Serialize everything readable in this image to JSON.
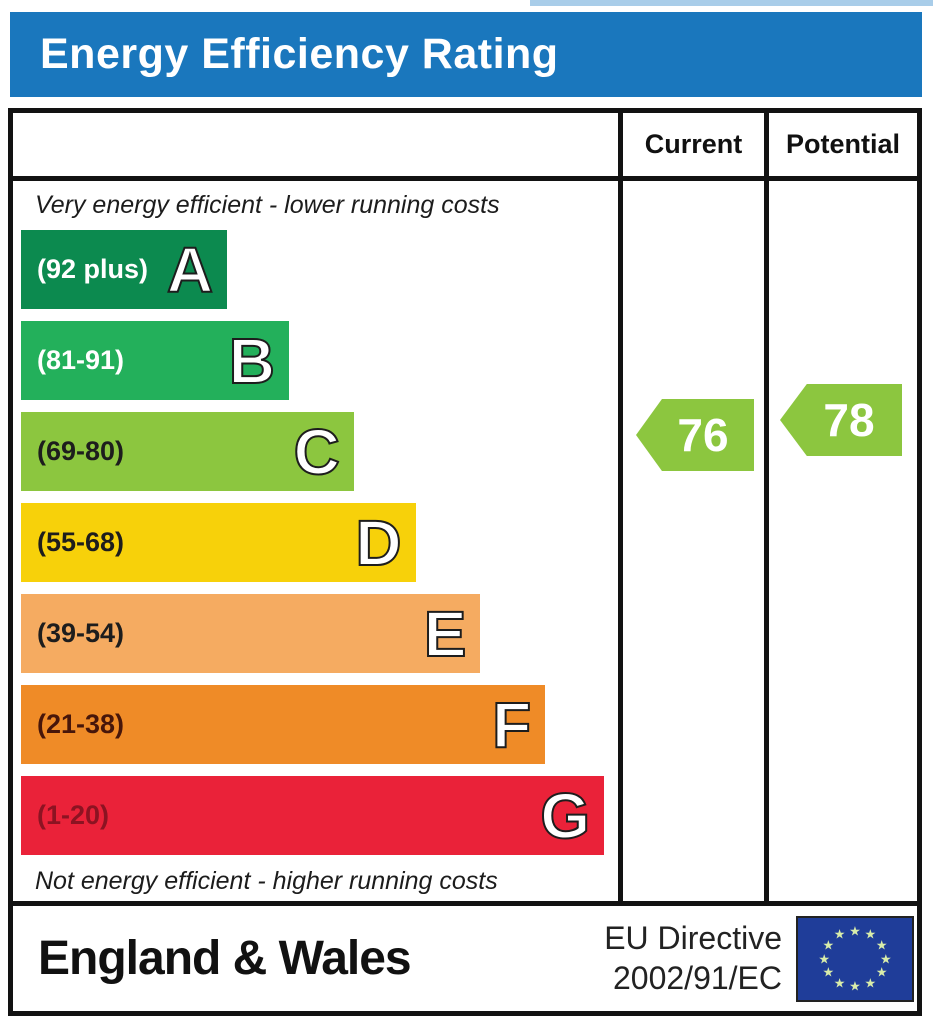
{
  "title": "Energy Efficiency Rating",
  "colors": {
    "title_bar": "#1a77bd",
    "table_border": "#121212",
    "rating_arrow_green": "#8cc63f"
  },
  "header": {
    "current_label": "Current",
    "potential_label": "Potential"
  },
  "scale": {
    "top_caption": "Very energy efficient - lower running costs",
    "bottom_caption": "Not energy efficient - higher running costs",
    "bands": [
      {
        "letter": "A",
        "range": "(92 plus)",
        "color": "#0c8a4f",
        "width_pct": 35,
        "label_color": "#ffffff"
      },
      {
        "letter": "B",
        "range": "(81-91)",
        "color": "#23b05b",
        "width_pct": 45.5,
        "label_color": "#ffffff"
      },
      {
        "letter": "C",
        "range": "(69-80)",
        "color": "#8cc63f",
        "width_pct": 56.5,
        "label_color": "#1d1d1d"
      },
      {
        "letter": "D",
        "range": "(55-68)",
        "color": "#f7d10a",
        "width_pct": 67,
        "label_color": "#1d1d1d"
      },
      {
        "letter": "E",
        "range": "(39-54)",
        "color": "#f5ab61",
        "width_pct": 78,
        "label_color": "#1d1d1d"
      },
      {
        "letter": "F",
        "range": "(21-38)",
        "color": "#ef8b27",
        "width_pct": 89,
        "label_color": "#47160a"
      },
      {
        "letter": "G",
        "range": "(1-20)",
        "color": "#ea2239",
        "width_pct": 99,
        "label_color": "#8c1322"
      }
    ]
  },
  "ratings": {
    "current": {
      "value": "76",
      "band": "C",
      "color": "#8cc63f"
    },
    "potential": {
      "value": "78",
      "band": "C",
      "color": "#8cc63f"
    }
  },
  "footer": {
    "region": "England & Wales",
    "directive_line1": "EU Directive",
    "directive_line2": "2002/91/EC",
    "eu_flag": {
      "icon": "eu-flag-stars-icon",
      "star_glyph": "★",
      "star_count": 12,
      "bg": "#1f3d99",
      "star_color": "#d9edaa"
    }
  },
  "chart_data": {
    "type": "bar",
    "orientation": "horizontal",
    "title": "Energy Efficiency Rating",
    "categories": [
      "A",
      "B",
      "C",
      "D",
      "E",
      "F",
      "G"
    ],
    "category_score_ranges": [
      "92 plus",
      "81-91",
      "69-80",
      "55-68",
      "39-54",
      "21-38",
      "1-20"
    ],
    "bar_lengths_pct_of_scale": [
      35,
      45.5,
      56.5,
      67,
      78,
      89,
      99
    ],
    "bar_colors": [
      "#0c8a4f",
      "#23b05b",
      "#8cc63f",
      "#f7d10a",
      "#f5ab61",
      "#ef8b27",
      "#ea2239"
    ],
    "scale_range": [
      1,
      100
    ],
    "series": [
      {
        "name": "Current",
        "values": [
          76
        ],
        "band": "C"
      },
      {
        "name": "Potential",
        "values": [
          78
        ],
        "band": "C"
      }
    ],
    "annotations": [
      "Very energy efficient - lower running costs",
      "Not energy efficient - higher running costs"
    ],
    "legend_position": "top-right-columns",
    "grid": false
  }
}
